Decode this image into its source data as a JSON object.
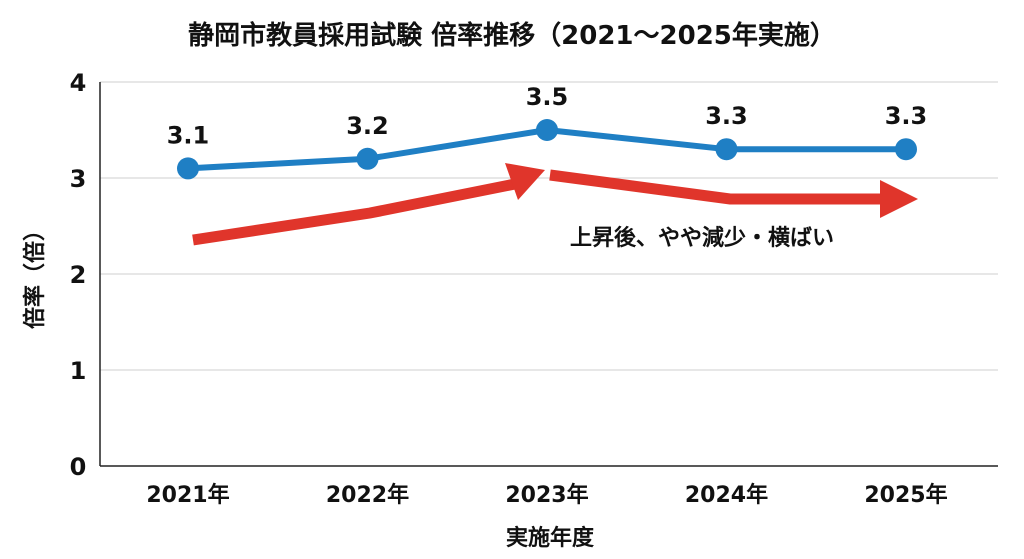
{
  "chart_data": {
    "type": "line",
    "title": "静岡市教員採用試験 倍率推移（2021～2025年実施）",
    "xlabel": "実施年度",
    "ylabel": "倍率（倍）",
    "categories": [
      "2021年",
      "2022年",
      "2023年",
      "2024年",
      "2025年"
    ],
    "series": [
      {
        "values": [
          3.1,
          3.2,
          3.5,
          3.3,
          3.3
        ],
        "labels": [
          "3.1",
          "3.2",
          "3.5",
          "3.3",
          "3.3"
        ],
        "color": "#1f7fc4"
      }
    ],
    "ylim": [
      0,
      4
    ],
    "yticks": [
      "0",
      "1",
      "2",
      "3",
      "4"
    ],
    "grid": true,
    "annotation": {
      "text": "上昇後、やや減少・横ばい",
      "arrow_color": "#e0352b"
    }
  }
}
